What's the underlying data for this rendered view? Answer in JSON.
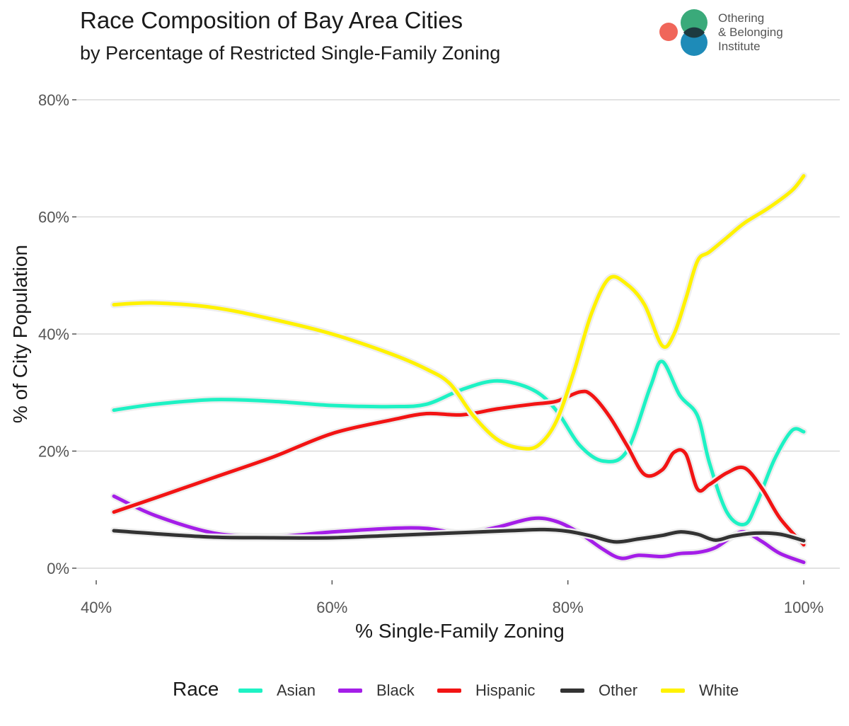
{
  "title": "Race Composition of Bay Area Cities",
  "subtitle": "by Percentage of Restricted Single-Family Zoning",
  "logo": {
    "lines": [
      "Othering",
      "& Belonging",
      "Institute"
    ],
    "colors": [
      "#f0665a",
      "#3aaa7a",
      "#1e8bb8"
    ]
  },
  "legend": {
    "title": "Race",
    "items": [
      {
        "label": "Asian",
        "color": "#1ef2c4"
      },
      {
        "label": "Black",
        "color": "#a41ee8"
      },
      {
        "label": "Hispanic",
        "color": "#f21414"
      },
      {
        "label": "Other",
        "color": "#333333"
      },
      {
        "label": "White",
        "color": "#fff200"
      }
    ]
  },
  "chart_data": {
    "type": "line",
    "title": "Race Composition of Bay Area Cities",
    "subtitle": "by Percentage of Restricted Single-Family Zoning",
    "xlabel": "% Single-Family Zoning",
    "ylabel": "% of City Population",
    "xlim": [
      37,
      105
    ],
    "ylim": [
      -2,
      82
    ],
    "xticks": [
      40,
      60,
      80,
      100
    ],
    "xtick_labels": [
      "40%",
      "60%",
      "80%",
      "100%"
    ],
    "yticks": [
      0,
      20,
      40,
      60,
      80
    ],
    "ytick_labels": [
      "0%",
      "20%",
      "40%",
      "60%",
      "80%"
    ],
    "grid": "horizontal",
    "legend_position": "bottom",
    "series": [
      {
        "name": "Asian",
        "color": "#1ef2c4",
        "x": [
          41.5,
          45,
          50,
          55,
          60,
          65,
          68,
          71,
          74,
          77,
          79,
          81,
          83,
          85,
          87,
          88,
          89.5,
          91,
          92,
          93.5,
          95,
          96,
          97.5,
          99,
          100
        ],
        "y": [
          27,
          28,
          28.8,
          28.5,
          27.8,
          27.6,
          28,
          30.5,
          32,
          30.5,
          27,
          21,
          18.3,
          20,
          31,
          35.3,
          29.5,
          26,
          18,
          9.5,
          7.5,
          11,
          18.5,
          23.5,
          23.3
        ]
      },
      {
        "name": "Black",
        "color": "#a41ee8",
        "x": [
          41.5,
          45,
          50,
          55,
          60,
          65,
          68,
          71,
          74,
          77,
          79,
          81,
          83,
          84.5,
          86,
          88,
          89.5,
          91,
          92.5,
          94,
          95,
          96.5,
          98,
          100
        ],
        "y": [
          12.3,
          9,
          6,
          5.4,
          6.2,
          6.8,
          6.8,
          6,
          7,
          8.5,
          8,
          6,
          3.2,
          1.7,
          2.2,
          2,
          2.5,
          2.7,
          3.5,
          5.5,
          6.2,
          4.5,
          2.5,
          1
        ]
      },
      {
        "name": "Hispanic",
        "color": "#f21414",
        "x": [
          41.5,
          45,
          50,
          55,
          60,
          65,
          68,
          71,
          74,
          77,
          79,
          81,
          82,
          83.5,
          85,
          86.5,
          88,
          89,
          90,
          91,
          92,
          93.5,
          95,
          96.5,
          98,
          100
        ],
        "y": [
          9.6,
          12,
          15.5,
          19,
          23,
          25.3,
          26.4,
          26.2,
          27.2,
          28,
          28.5,
          30.1,
          29.6,
          26,
          21,
          16,
          16.8,
          19.8,
          19.5,
          13.5,
          14.3,
          16.3,
          17.1,
          13.5,
          8.5,
          4
        ]
      },
      {
        "name": "Other",
        "color": "#333333",
        "x": [
          41.5,
          45,
          50,
          55,
          60,
          65,
          70,
          75,
          78,
          80,
          82,
          84,
          86,
          88,
          89.5,
          91,
          92.5,
          94,
          96,
          98,
          100
        ],
        "y": [
          6.4,
          5.9,
          5.3,
          5.2,
          5.2,
          5.6,
          6,
          6.4,
          6.6,
          6.3,
          5.5,
          4.5,
          5,
          5.6,
          6.2,
          5.8,
          4.8,
          5.5,
          6,
          5.8,
          4.7
        ]
      },
      {
        "name": "White",
        "color": "#fff200",
        "x": [
          41.5,
          45,
          50,
          55,
          60,
          65,
          68,
          70,
          72,
          74,
          76,
          77.5,
          79,
          80.5,
          82,
          83.5,
          85,
          86.5,
          88,
          89,
          90,
          91,
          92,
          93.5,
          95,
          97,
          99,
          100
        ],
        "y": [
          45,
          45.3,
          44.5,
          42.5,
          40,
          36.6,
          34,
          31.5,
          26,
          22,
          20.5,
          21,
          25,
          33.5,
          43.5,
          49.5,
          48.5,
          45,
          38,
          40,
          46,
          52.5,
          54,
          56.5,
          59,
          61.5,
          64.5,
          67
        ]
      }
    ]
  }
}
